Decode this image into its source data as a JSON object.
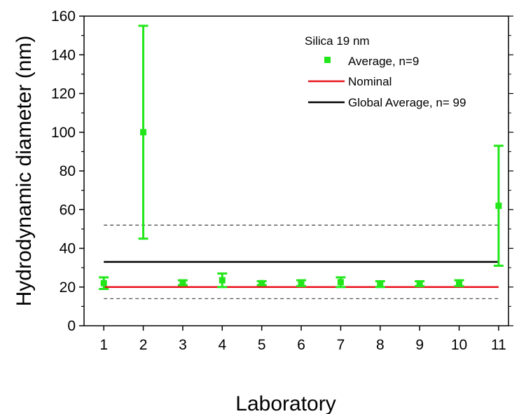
{
  "chart_data": {
    "type": "scatter",
    "xlabel": "Laboratory",
    "ylabel": "Hydrodynamic diameter (nm)",
    "xlim": [
      0.5,
      11.25
    ],
    "ylim": [
      0,
      160
    ],
    "xticks": [
      1,
      2,
      3,
      4,
      5,
      6,
      7,
      8,
      9,
      10,
      11
    ],
    "yticks": [
      0,
      20,
      40,
      60,
      80,
      100,
      120,
      140,
      160
    ],
    "legend_title": "Silica 19 nm",
    "legend_position": "top-right",
    "grid": false,
    "series": [
      {
        "name": "Average, n=9",
        "kind": "points-with-error-bars",
        "color": "#22e61a",
        "points": [
          {
            "x": 1,
            "y": 22,
            "ylow": 19,
            "yhigh": 25
          },
          {
            "x": 2,
            "y": 100,
            "ylow": 45,
            "yhigh": 155
          },
          {
            "x": 3,
            "y": 22,
            "ylow": 21,
            "yhigh": 23.5
          },
          {
            "x": 4,
            "y": 23.5,
            "ylow": 20,
            "yhigh": 27
          },
          {
            "x": 5,
            "y": 22,
            "ylow": 21,
            "yhigh": 23
          },
          {
            "x": 6,
            "y": 22,
            "ylow": 20.5,
            "yhigh": 23.5
          },
          {
            "x": 7,
            "y": 22.5,
            "ylow": 20,
            "yhigh": 25
          },
          {
            "x": 8,
            "y": 21.5,
            "ylow": 20,
            "yhigh": 23
          },
          {
            "x": 9,
            "y": 21.5,
            "ylow": 20.5,
            "yhigh": 23
          },
          {
            "x": 10,
            "y": 22,
            "ylow": 20.5,
            "yhigh": 23.5
          },
          {
            "x": 11,
            "y": 62,
            "ylow": 31,
            "yhigh": 93
          }
        ]
      },
      {
        "name": "Nominal",
        "kind": "hline",
        "color": "#e8141b",
        "y": 20,
        "x_from": 1,
        "x_to": 11
      },
      {
        "name": "Global Average, n= 99",
        "kind": "hline",
        "color": "#000000",
        "y": 33,
        "x_from": 1,
        "x_to": 11
      }
    ],
    "reference_lines": [
      {
        "y": 52,
        "style": "dashed",
        "color": "#444444"
      },
      {
        "y": 14,
        "style": "dashed",
        "color": "#444444"
      }
    ]
  }
}
